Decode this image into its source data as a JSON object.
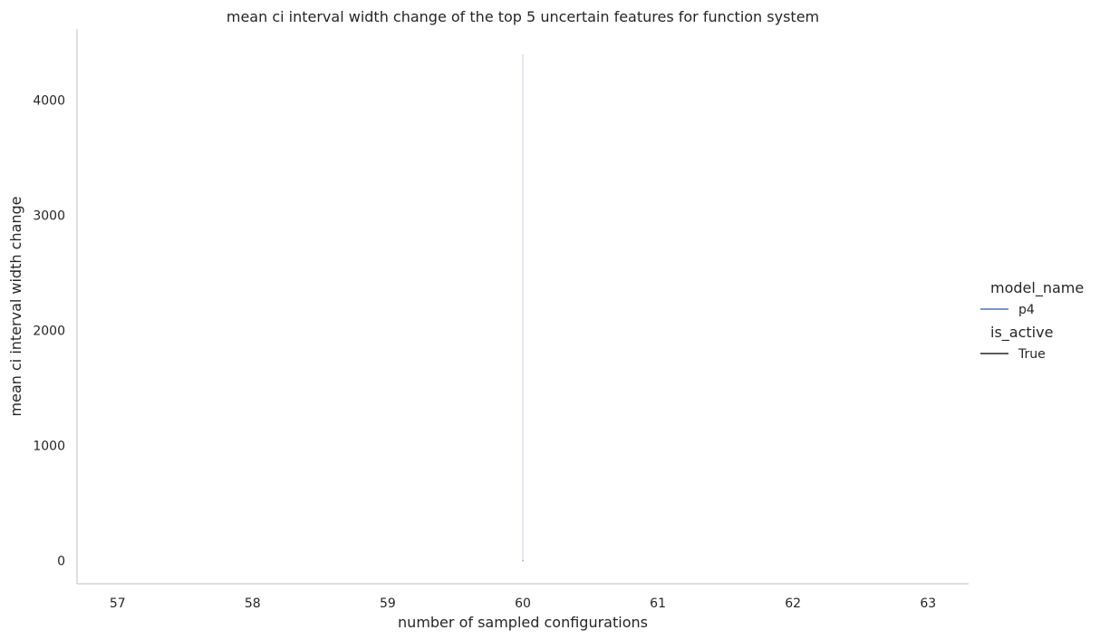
{
  "chart_data": {
    "type": "line",
    "title": "mean ci interval width change of the top 5 uncertain features for function system",
    "xlabel": "number of sampled configurations",
    "ylabel": "mean ci interval width change",
    "x_ticks": [
      57,
      58,
      59,
      60,
      61,
      62,
      63
    ],
    "y_ticks": [
      0,
      1000,
      2000,
      3000,
      4000
    ],
    "xlim": [
      56.7,
      63.3
    ],
    "ylim": [
      -200,
      4620
    ],
    "grid": false,
    "legend_placement": "right",
    "legend": [
      {
        "title": "model_name",
        "entries": [
          {
            "label": "p4",
            "color": "#4c72b0"
          }
        ]
      },
      {
        "title": "is_active",
        "entries": [
          {
            "label": "True",
            "color": "#262626"
          }
        ]
      }
    ],
    "series": [
      {
        "name": "p4",
        "color": "#4c72b0",
        "points": [
          {
            "x": 60,
            "y": 0
          }
        ],
        "ci_band": {
          "x": 60,
          "low": 0,
          "high": 4400,
          "color": "#dcdfec"
        }
      }
    ]
  }
}
